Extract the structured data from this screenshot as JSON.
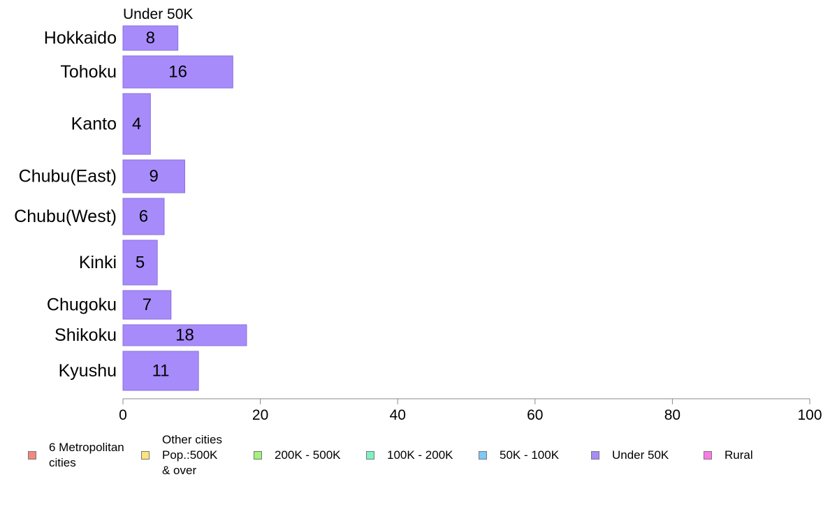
{
  "chart_data": {
    "type": "bar",
    "orientation": "horizontal",
    "panel_title": "Under 50K",
    "categories": [
      "Hokkaido",
      "Tohoku",
      "Kanto",
      "Chubu(East)",
      "Chubu(West)",
      "Kinki",
      "Chugoku",
      "Shikoku",
      "Kyushu"
    ],
    "values": [
      8,
      16,
      4,
      9,
      6,
      5,
      7,
      18,
      11
    ],
    "xlim": [
      0,
      100
    ],
    "xticks": [
      0,
      20,
      40,
      60,
      80,
      100
    ],
    "xtick_labels": [
      "0",
      "20",
      "40",
      "60",
      "80",
      "100"
    ],
    "bar_color": "#a78bfa",
    "bar_border": "#8a6fe0",
    "grid": false,
    "legend_position": "bottom",
    "legend": [
      {
        "label": "6 Metropolitan\n cities",
        "color": "#f4877f"
      },
      {
        "label": "Other cities\nPop.:500K\n & over",
        "color": "#fde47f"
      },
      {
        "label": "200K - 500K",
        "color": "#a4f17c"
      },
      {
        "label": "100K - 200K",
        "color": "#7df2c4"
      },
      {
        "label": "50K - 100K",
        "color": "#7ec9f6"
      },
      {
        "label": "Under 50K",
        "color": "#a78bfa"
      },
      {
        "label": "Rural",
        "color": "#fa7ae8"
      }
    ]
  }
}
